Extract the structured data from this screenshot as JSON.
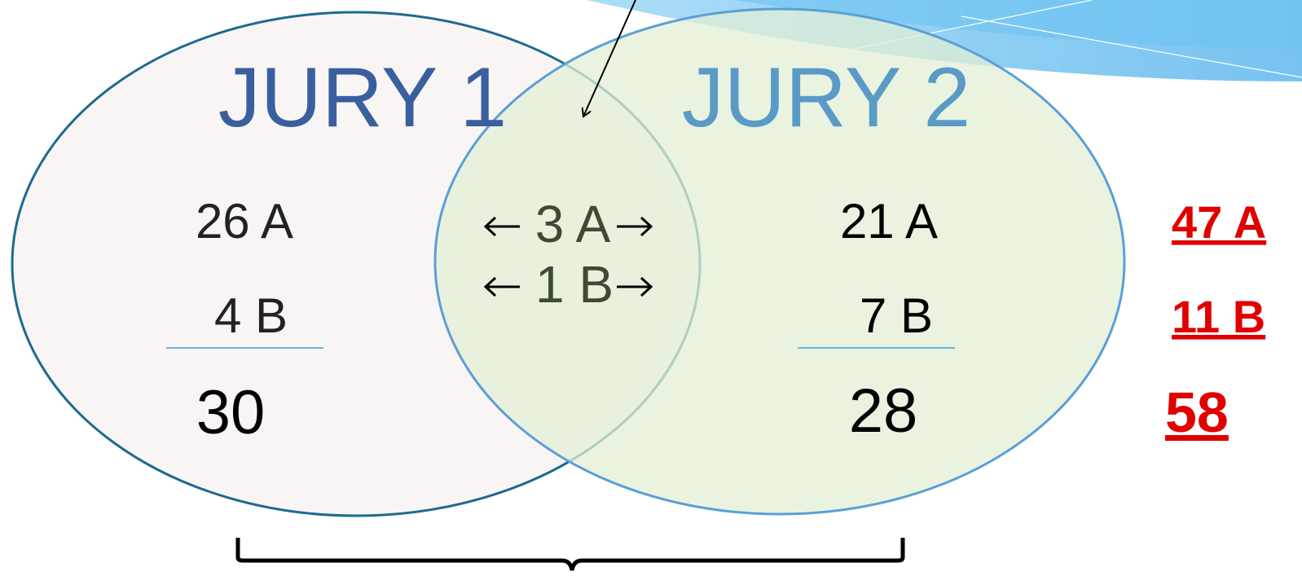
{
  "left_set": {
    "label": "JURY 1",
    "items": [
      "26 A",
      "4 B"
    ],
    "total": "30"
  },
  "overlap": {
    "items": [
      "3 A",
      "1 B"
    ]
  },
  "right_set": {
    "label": "JURY 2",
    "items": [
      "21 A",
      "7 B"
    ],
    "total": "28"
  },
  "totals": {
    "items": [
      "47 A",
      "11 B"
    ],
    "total": "58"
  }
}
